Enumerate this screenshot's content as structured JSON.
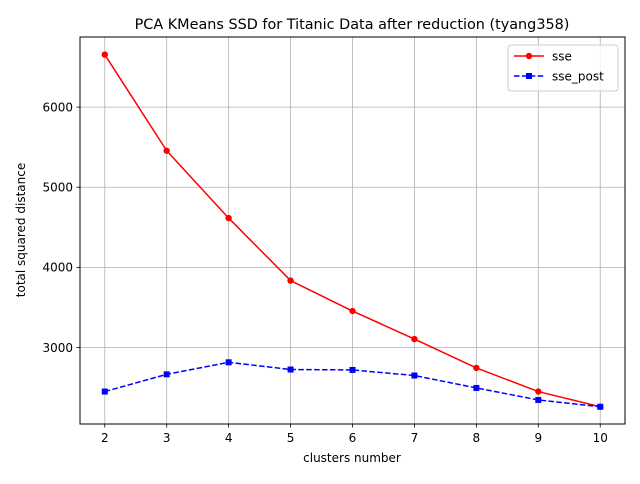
{
  "chart_data": {
    "type": "line",
    "title": "PCA KMeans SSD for Titanic Data after reduction (tyang358)",
    "xlabel": "clusters number",
    "ylabel": "total squared distance",
    "x": [
      2,
      3,
      4,
      5,
      6,
      7,
      8,
      9,
      10
    ],
    "xlim": [
      1.6,
      10.4
    ],
    "ylim": [
      2045,
      6875
    ],
    "xticks": [
      "2",
      "3",
      "4",
      "5",
      "6",
      "7",
      "8",
      "9",
      "10"
    ],
    "yticks": [
      3000,
      4000,
      5000,
      6000
    ],
    "grid": true,
    "legend_position": "top-right",
    "series": [
      {
        "name": "sse",
        "color": "#ff0000",
        "line_style": "solid",
        "marker": "circle",
        "values": [
          6655,
          5455,
          4615,
          3835,
          3455,
          3105,
          2745,
          2450,
          2260
        ]
      },
      {
        "name": "sse_post",
        "color": "#0000ff",
        "line_style": "dashed",
        "marker": "square",
        "values": [
          2450,
          2665,
          2815,
          2725,
          2720,
          2650,
          2495,
          2345,
          2260
        ]
      }
    ]
  }
}
